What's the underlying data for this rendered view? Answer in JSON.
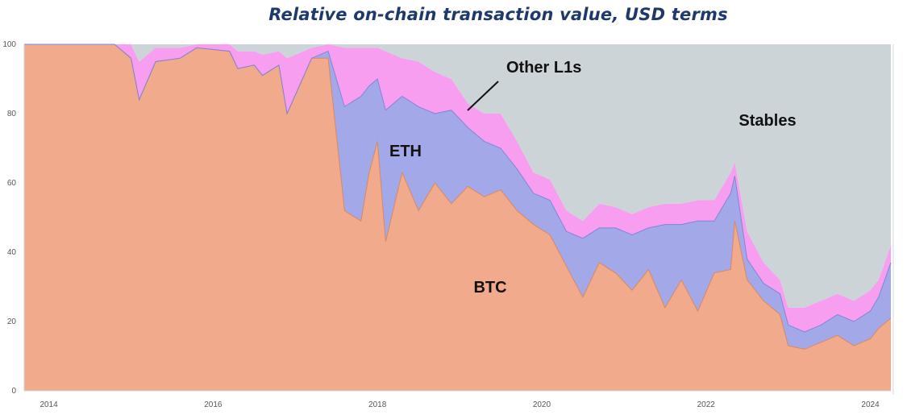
{
  "chart_data": {
    "type": "area",
    "title": "Relative on-chain transaction value, USD terms",
    "xlabel": "",
    "ylabel": "",
    "xlim": [
      2013.7,
      2024.25
    ],
    "ylim": [
      0,
      100
    ],
    "x_ticks": [
      "2014",
      "2016",
      "2018",
      "2020",
      "2022",
      "2024"
    ],
    "y_ticks": [
      "0",
      "20",
      "40",
      "60",
      "80",
      "100"
    ],
    "grid": false,
    "stacking": "cumulative",
    "x": [
      2013.7,
      2014.6,
      2014.8,
      2015.0,
      2015.1,
      2015.3,
      2015.6,
      2015.8,
      2016.2,
      2016.3,
      2016.5,
      2016.6,
      2016.8,
      2016.9,
      2017.2,
      2017.4,
      2017.6,
      2017.8,
      2017.9,
      2018.0,
      2018.1,
      2018.3,
      2018.5,
      2018.7,
      2018.9,
      2019.1,
      2019.3,
      2019.5,
      2019.7,
      2019.9,
      2020.1,
      2020.3,
      2020.5,
      2020.7,
      2020.9,
      2021.1,
      2021.3,
      2021.5,
      2021.7,
      2021.9,
      2022.1,
      2022.3,
      2022.35,
      2022.5,
      2022.7,
      2022.9,
      2023.0,
      2023.2,
      2023.4,
      2023.6,
      2023.8,
      2024.0,
      2024.1,
      2024.25
    ],
    "series": [
      {
        "name": "BTC",
        "color": "#f2aa8c",
        "values": [
          100,
          100,
          100,
          96,
          84,
          95,
          96,
          99,
          98,
          93,
          94,
          91,
          94,
          80,
          96,
          96,
          52,
          49,
          63,
          72,
          43,
          63,
          52,
          60,
          54,
          59,
          56,
          58,
          52,
          48,
          45,
          36,
          27,
          37,
          34,
          29,
          35,
          24,
          32,
          23,
          34,
          35,
          49,
          32,
          26,
          22,
          13,
          12,
          14,
          16,
          13,
          15,
          18,
          21
        ]
      },
      {
        "name": "ETH",
        "color": "#a3a8e8",
        "values": [
          0,
          0,
          0,
          0,
          0,
          0,
          0,
          0,
          0,
          0,
          0,
          0,
          0,
          0,
          0,
          2,
          30,
          36,
          25,
          18,
          38,
          22,
          30,
          20,
          27,
          17,
          16,
          12,
          12,
          9,
          10,
          10,
          17,
          10,
          13,
          16,
          12,
          24,
          16,
          26,
          15,
          22,
          13,
          6,
          5,
          6,
          6,
          5,
          5,
          6,
          7,
          8,
          9,
          16
        ]
      },
      {
        "name": "Other L1s",
        "color": "#f79ef0",
        "values": [
          0,
          0,
          0,
          4,
          11,
          4,
          3,
          1,
          2,
          5,
          4,
          6,
          4,
          16,
          3,
          2,
          17,
          14,
          11,
          9,
          17,
          11,
          13,
          12,
          9,
          7,
          8,
          10,
          8,
          6,
          6,
          6,
          5,
          7,
          6,
          6,
          6,
          6,
          6,
          6,
          6,
          6,
          4,
          8,
          6,
          4,
          5,
          7,
          7,
          6,
          6,
          6,
          5,
          5
        ]
      },
      {
        "name": "Stables",
        "color": "#ccd4d8",
        "values": [
          0,
          0,
          0,
          0,
          5,
          1,
          1,
          0,
          0,
          2,
          2,
          3,
          2,
          4,
          1,
          0,
          1,
          1,
          1,
          1,
          2,
          4,
          5,
          8,
          10,
          17,
          20,
          20,
          28,
          37,
          39,
          48,
          51,
          46,
          47,
          49,
          47,
          46,
          46,
          45,
          45,
          37,
          34,
          54,
          63,
          68,
          76,
          76,
          74,
          72,
          74,
          71,
          68,
          58
        ]
      }
    ],
    "annotations": [
      {
        "text": "Other L1s",
        "series": "Other L1s",
        "pointer": true
      },
      {
        "text": "ETH",
        "series": "ETH"
      },
      {
        "text": "Stables",
        "series": "Stables"
      },
      {
        "text": "BTC",
        "series": "BTC"
      }
    ]
  }
}
